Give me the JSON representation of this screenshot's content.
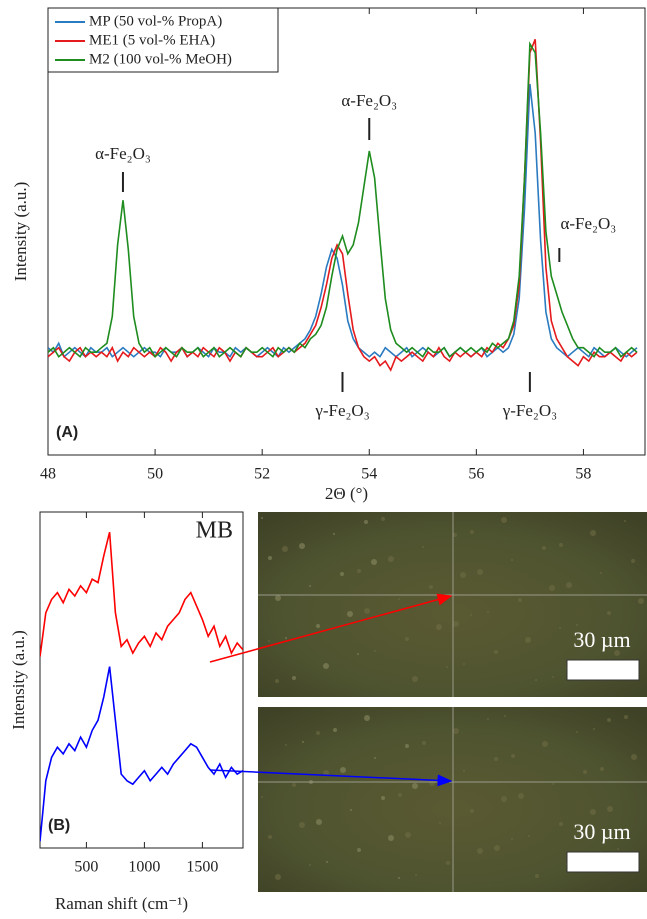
{
  "chart_data": [
    {
      "type": "line",
      "panel_label": "(A)",
      "xlabel": "2Θ (°)",
      "ylabel": "Intensity (a.u.)",
      "legend": "upper left",
      "x": [
        48.0,
        48.1,
        48.2,
        48.3,
        48.4,
        48.5,
        48.6,
        48.7,
        48.8,
        48.9,
        49.0,
        49.1,
        49.2,
        49.3,
        49.4,
        49.5,
        49.6,
        49.7,
        49.8,
        49.9,
        50.0,
        50.1,
        50.2,
        50.3,
        50.4,
        50.5,
        50.6,
        50.7,
        50.8,
        50.9,
        51.0,
        51.1,
        51.2,
        51.3,
        51.4,
        51.5,
        51.6,
        51.7,
        51.8,
        51.9,
        52.0,
        52.1,
        52.2,
        52.3,
        52.4,
        52.5,
        52.6,
        52.7,
        52.8,
        52.9,
        53.0,
        53.1,
        53.2,
        53.3,
        53.4,
        53.5,
        53.6,
        53.7,
        53.8,
        53.9,
        54.0,
        54.1,
        54.2,
        54.3,
        54.4,
        54.5,
        54.6,
        54.7,
        54.8,
        54.9,
        55.0,
        55.1,
        55.2,
        55.3,
        55.4,
        55.5,
        55.6,
        55.7,
        55.8,
        55.9,
        56.0,
        56.1,
        56.2,
        56.3,
        56.4,
        56.5,
        56.6,
        56.7,
        56.8,
        56.9,
        57.0,
        57.1,
        57.2,
        57.3,
        57.4,
        57.5,
        57.6,
        57.7,
        57.8,
        57.9,
        58.0,
        58.1,
        58.2,
        58.3,
        58.4,
        58.5,
        58.6,
        58.7,
        58.8,
        58.9,
        59.0
      ],
      "series": [
        {
          "name": "MP (50 vol-% PropA)",
          "color": "#2b7bc0",
          "values": [
            24,
            23,
            25,
            22,
            23,
            24,
            23,
            22,
            24,
            23,
            23,
            24,
            22,
            23,
            24,
            23,
            22,
            23,
            24,
            23,
            23,
            22,
            24,
            23,
            23,
            24,
            22,
            23,
            24,
            23,
            22,
            24,
            23,
            23,
            22,
            24,
            23,
            24,
            23,
            22,
            23,
            24,
            23,
            22,
            24,
            23,
            24,
            25,
            26,
            28,
            31,
            36,
            42,
            46,
            44,
            38,
            30,
            26,
            24,
            23,
            22,
            23,
            22,
            24,
            23,
            22,
            23,
            24,
            22,
            23,
            24,
            23,
            22,
            23,
            24,
            22,
            23,
            24,
            23,
            22,
            23,
            24,
            22,
            23,
            24,
            23,
            24,
            27,
            35,
            55,
            83,
            72,
            48,
            32,
            26,
            24,
            23,
            22,
            23,
            24,
            23,
            22,
            24,
            23,
            22,
            23,
            24,
            23,
            22,
            23,
            24
          ]
        },
        {
          "name": "ME1 (5 vol-% EHA)",
          "color": "#e41a1c",
          "values": [
            22,
            23,
            24,
            22,
            21,
            23,
            24,
            22,
            23,
            22,
            23,
            22,
            24,
            21,
            23,
            22,
            24,
            23,
            22,
            23,
            22,
            24,
            23,
            21,
            23,
            24,
            22,
            23,
            22,
            24,
            23,
            22,
            24,
            23,
            21,
            23,
            22,
            24,
            23,
            22,
            22,
            23,
            24,
            22,
            23,
            24,
            23,
            24,
            25,
            27,
            29,
            33,
            38,
            44,
            47,
            45,
            36,
            28,
            24,
            22,
            21,
            22,
            20,
            21,
            19,
            22,
            21,
            22,
            23,
            22,
            21,
            23,
            22,
            24,
            22,
            21,
            23,
            22,
            23,
            22,
            23,
            22,
            24,
            23,
            25,
            24,
            26,
            29,
            38,
            62,
            90,
            93,
            70,
            42,
            30,
            26,
            24,
            22,
            21,
            20,
            22,
            21,
            23,
            22,
            22,
            23,
            22,
            21,
            23,
            22,
            23
          ]
        },
        {
          "name": "M2 (100 vol-% MeOH)",
          "color": "#1e8c1e",
          "values": [
            23,
            24,
            22,
            23,
            24,
            23,
            22,
            24,
            23,
            23,
            24,
            25,
            31,
            47,
            57,
            46,
            31,
            25,
            23,
            24,
            22,
            23,
            24,
            23,
            22,
            24,
            23,
            23,
            24,
            22,
            23,
            24,
            22,
            23,
            24,
            23,
            22,
            24,
            23,
            23,
            24,
            23,
            22,
            24,
            23,
            24,
            23,
            25,
            24,
            26,
            27,
            29,
            33,
            40,
            46,
            49,
            45,
            47,
            52,
            60,
            68,
            62,
            48,
            35,
            28,
            25,
            24,
            23,
            24,
            23,
            22,
            24,
            23,
            23,
            24,
            22,
            23,
            24,
            23,
            24,
            23,
            24,
            23,
            25,
            24,
            25,
            26,
            30,
            40,
            62,
            92,
            90,
            72,
            50,
            40,
            36,
            32,
            29,
            26,
            24,
            24,
            23,
            22,
            24,
            23,
            23,
            24,
            22,
            23,
            24,
            23
          ]
        }
      ],
      "xlim": [
        48,
        59.15
      ],
      "xticks": [
        48,
        50,
        52,
        54,
        56,
        58
      ],
      "ylim": [
        0,
        100
      ],
      "annotations": [
        {
          "text": "α-Fe₂O₃",
          "x": 49.4
        },
        {
          "text": "α-Fe₂O₃",
          "x": 54.0
        },
        {
          "text": "α-Fe₂O₃",
          "x": 57.55
        },
        {
          "text": "γ-Fe₂O₃",
          "x": 53.5
        },
        {
          "text": "γ-Fe₂O₃",
          "x": 57.0
        }
      ]
    },
    {
      "type": "line",
      "panel_label": "(B)",
      "title": "MB",
      "xlabel": "Raman shift (cm⁻¹)",
      "ylabel": "Intensity (a.u.)",
      "x": [
        100,
        150,
        200,
        250,
        300,
        350,
        400,
        450,
        500,
        550,
        600,
        650,
        700,
        750,
        800,
        850,
        900,
        950,
        1000,
        1050,
        1100,
        1150,
        1200,
        1250,
        1300,
        1350,
        1400,
        1450,
        1500,
        1550,
        1600,
        1650,
        1700,
        1750,
        1800,
        1850
      ],
      "series": [
        {
          "color": "#ff0000",
          "values": [
            57,
            70,
            74,
            76,
            73,
            77,
            75,
            78,
            76,
            80,
            79,
            87,
            94,
            70,
            60,
            62,
            58,
            61,
            63,
            60,
            64,
            62,
            66,
            68,
            70,
            74,
            76,
            72,
            68,
            63,
            66,
            60,
            63,
            58,
            61,
            59
          ]
        },
        {
          "color": "#0000ff",
          "values": [
            2,
            20,
            27,
            30,
            28,
            31,
            29,
            33,
            30,
            35,
            38,
            45,
            54,
            38,
            22,
            20,
            19,
            21,
            23,
            20,
            22,
            24,
            22,
            25,
            27,
            29,
            31,
            30,
            27,
            24,
            22,
            25,
            21,
            24,
            22,
            23
          ]
        }
      ],
      "xlim": [
        100,
        1850
      ],
      "xticks": [
        500,
        1000,
        1500
      ],
      "ylim": [
        0,
        100
      ]
    }
  ],
  "images": [
    {
      "scale_label": "30 µm"
    },
    {
      "scale_label": "30 µm"
    }
  ]
}
